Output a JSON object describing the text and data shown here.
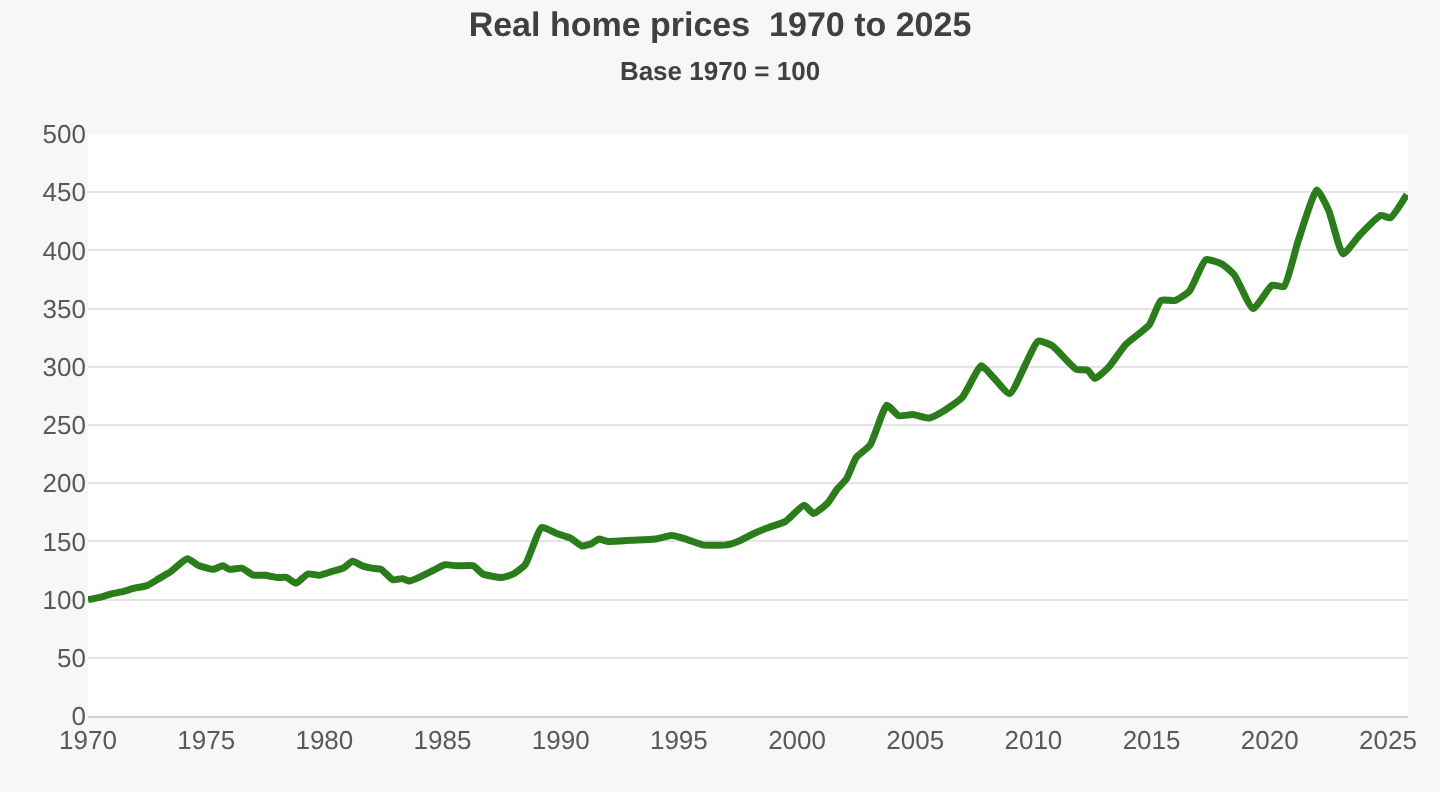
{
  "chart_data": {
    "type": "line",
    "title": "Real home prices  1970 to 2025",
    "subtitle": "Base 1970 = 100",
    "x": [
      1970,
      1970.5,
      1971,
      1971.5,
      1972,
      1972.5,
      1973,
      1973.5,
      1974.2,
      1974.7,
      1975.3,
      1975.7,
      1976,
      1976.5,
      1977,
      1977.5,
      1978,
      1978.4,
      1978.8,
      1979.3,
      1979.8,
      1980.3,
      1980.8,
      1981.2,
      1981.6,
      1982,
      1982.4,
      1982.9,
      1983.3,
      1983.6,
      1984.1,
      1984.6,
      1985.1,
      1985.6,
      1986.3,
      1986.7,
      1987.5,
      1988,
      1988.5,
      1989.2,
      1989.8,
      1990.4,
      1990.9,
      1991.3,
      1991.6,
      1992,
      1993,
      1994,
      1994.7,
      1995.3,
      1996,
      1997,
      1997.5,
      1998.2,
      1998.8,
      1999.5,
      2000.3,
      2000.7,
      2001.3,
      2001.7,
      2002.1,
      2002.5,
      2003.1,
      2003.8,
      2004.3,
      2004.9,
      2005.6,
      2006.2,
      2007,
      2007.8,
      2008.3,
      2009,
      2010.2,
      2010.8,
      2011.8,
      2012.3,
      2012.6,
      2013.2,
      2013.9,
      2014.9,
      2015.4,
      2016,
      2016.6,
      2017.3,
      2018,
      2018.5,
      2019.3,
      2020.1,
      2020.6,
      2021.2,
      2022,
      2022.5,
      2023.1,
      2023.8,
      2024.7,
      2025.1,
      2025.8
    ],
    "series": [
      {
        "color": "#2a7d1a",
        "values": [
          100,
          102,
          105,
          107,
          110,
          112,
          118,
          124,
          135,
          129,
          126,
          129,
          126,
          127,
          121,
          121,
          119,
          119,
          114,
          122,
          121,
          124,
          127,
          133,
          129,
          127,
          126,
          117,
          118,
          116,
          120,
          125,
          130,
          129,
          129,
          122,
          119,
          122,
          130,
          162,
          157,
          153,
          146,
          148,
          152,
          150,
          151,
          152,
          155,
          152,
          147,
          147,
          150,
          157,
          162,
          167,
          181,
          174,
          183,
          195,
          204,
          222,
          233,
          267,
          258,
          259,
          256,
          262,
          274,
          301,
          291,
          277,
          322,
          318,
          298,
          297,
          290,
          300,
          319,
          336,
          357,
          357,
          365,
          392,
          388,
          379,
          350,
          370,
          369,
          408,
          452,
          434,
          397,
          413,
          430,
          428,
          448
        ]
      }
    ],
    "xlim": [
      1970,
      2025.85
    ],
    "xticks": [
      1970,
      1975,
      1980,
      1985,
      1990,
      1995,
      2000,
      2005,
      2010,
      2015,
      2020,
      2025
    ],
    "ylim": [
      0,
      500
    ],
    "yticks": [
      0,
      50,
      100,
      150,
      200,
      250,
      300,
      350,
      400,
      450,
      500
    ],
    "grid": "y",
    "marker": "none",
    "line_style": "solid"
  }
}
